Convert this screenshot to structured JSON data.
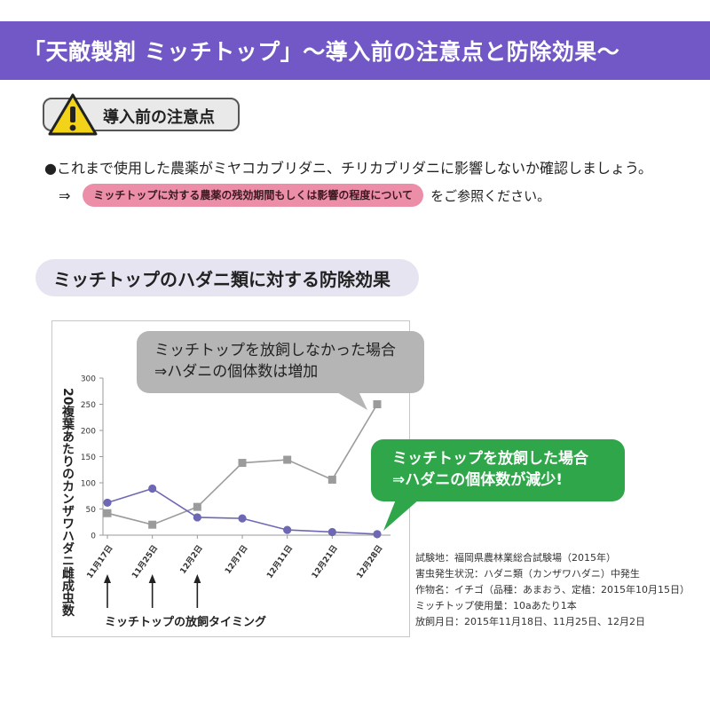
{
  "header": {
    "title": "「天敵製剤 ミッチトップ」～導入前の注意点と防除効果～"
  },
  "notice": {
    "heading": "導入前の注意点",
    "bullet": "●これまで使用した農薬がミヤコカブリダニ、チリカブリダニに影響しないか確認しましょう。",
    "arrow": "⇒",
    "link_pill": "ミッチトップに対する農薬の残効期間もしくは影響の程度について",
    "link_suffix": "をご参照ください。",
    "icon": "warning-icon"
  },
  "section": {
    "title": "ミッチトップのハダニ類に対する防除効果"
  },
  "chart_data": {
    "type": "line",
    "categories": [
      "11月17日",
      "11月25日",
      "12月2日",
      "12月7日",
      "12月11日",
      "12月21日",
      "12月28日"
    ],
    "series": [
      {
        "values": [
          42,
          20,
          54,
          138,
          144,
          106,
          250
        ],
        "color": "#9b9b9b",
        "marker": "square"
      },
      {
        "values": [
          62,
          89,
          34,
          32,
          10,
          6,
          2
        ],
        "color": "#6e68b4",
        "marker": "circle"
      }
    ],
    "ylabel": "20複葉あたりのカンザワハダニ雌成虫数",
    "ylim": [
      0,
      300
    ],
    "yticks": [
      0,
      50,
      100,
      150,
      200,
      250,
      300
    ],
    "grid": false,
    "release_timing_indices": [
      0,
      1,
      2
    ],
    "release_timing_label": "ミッチトップの放飼タイミング"
  },
  "bubbles": {
    "gray_line1": "ミッチトップを放飼しなかった場合",
    "gray_line2": "⇒ハダニの個体数は増加",
    "green_line1": "ミッチトップを放飼した場合",
    "green_line2": "⇒ハダニの個体数が減少!"
  },
  "info": [
    "試験地：福岡県農林業総合試験場（2015年）",
    "害虫発生状況：ハダニ類（カンザワハダニ）中発生",
    "作物名：イチゴ（品種：あまおう、定植：2015年10月15日）",
    "ミッチトップ使用量：10aあたり1本",
    "放飼月日：2015年11月18日、11月25日、12月2日"
  ],
  "colors": {
    "header": "#7258c6",
    "pink": "#ec8ea8",
    "green": "#2fa64a",
    "gray_bubble": "#b5b5b5",
    "section_bg": "#e6e4f1"
  }
}
